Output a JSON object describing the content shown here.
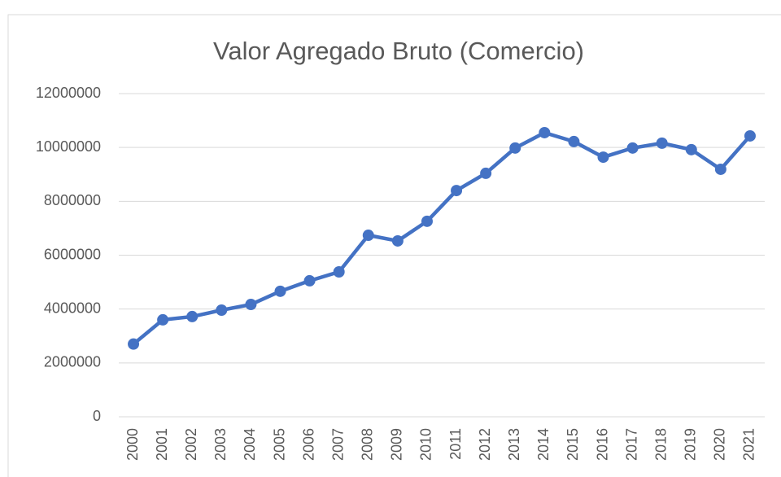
{
  "chart_data": {
    "type": "line",
    "title": "Valor Agregado Bruto (Comercio)",
    "categories": [
      "2000",
      "2001",
      "2002",
      "2003",
      "2004",
      "2005",
      "2006",
      "2007",
      "2008",
      "2009",
      "2010",
      "2011",
      "2012",
      "2013",
      "2014",
      "2015",
      "2016",
      "2017",
      "2018",
      "2019",
      "2020",
      "2021"
    ],
    "values": [
      2700000,
      3600000,
      3720000,
      3960000,
      4170000,
      4660000,
      5050000,
      5380000,
      6740000,
      6530000,
      7260000,
      8400000,
      9040000,
      9980000,
      10550000,
      10220000,
      9640000,
      9980000,
      10160000,
      9920000,
      9190000,
      10430000
    ],
    "color": "#4472c4",
    "ylim": [
      0,
      12000000
    ],
    "yticks": [
      0,
      2000000,
      4000000,
      6000000,
      8000000,
      10000000,
      12000000
    ],
    "grid": true
  }
}
